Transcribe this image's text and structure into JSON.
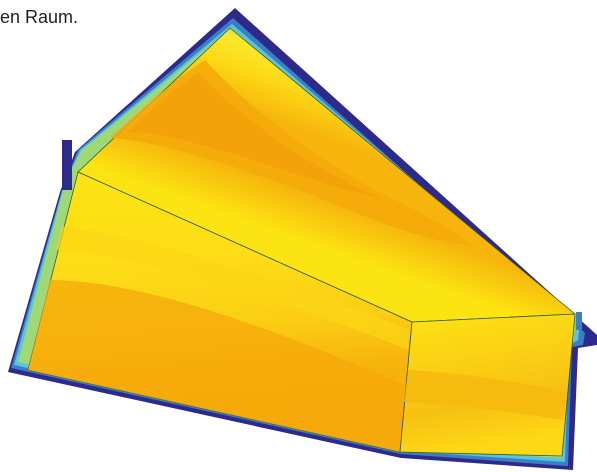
{
  "caption": {
    "line_fragment": "en Raum."
  },
  "colors": {
    "deep": "#2e2a8c",
    "cold": "#2b6fb8",
    "cyan": "#5fc6d8",
    "green": "#a9d86b",
    "yellow": "#fbe315",
    "orange": "#f4a50c"
  }
}
